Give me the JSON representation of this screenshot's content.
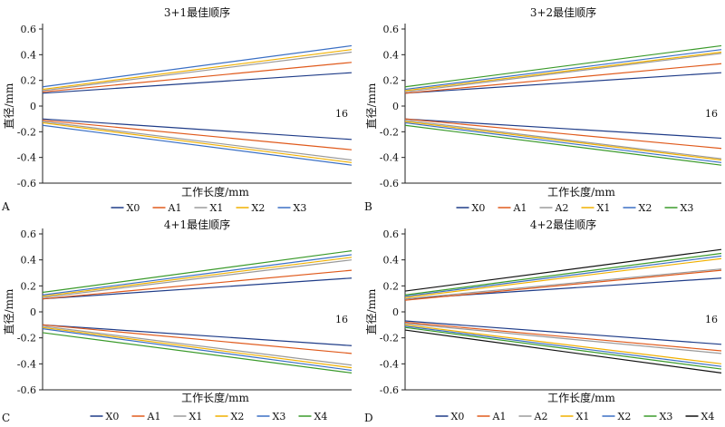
{
  "chart_data": [
    {
      "type": "line",
      "panel_label": "A",
      "title": "3+1最佳顺序",
      "xlabel": "工作长度/mm",
      "ylabel": "直径/mm",
      "annotation": "16",
      "ylim": [
        -0.6,
        0.6
      ],
      "yticks": [
        "0.6",
        "0.4",
        "0.2",
        "0",
        "-0.2",
        "-0.4",
        "-0.6"
      ],
      "x": [
        0,
        16
      ],
      "legend_position": "bottom",
      "series": [
        {
          "name": "X0",
          "color": "#1f3c88",
          "upper": [
            0.1,
            0.26
          ],
          "lower": [
            -0.1,
            -0.26
          ]
        },
        {
          "name": "A1",
          "color": "#e05a1c",
          "upper": [
            0.11,
            0.34
          ],
          "lower": [
            -0.11,
            -0.34
          ]
        },
        {
          "name": "X1",
          "color": "#9a9a9a",
          "upper": [
            0.12,
            0.42
          ],
          "lower": [
            -0.12,
            -0.42
          ]
        },
        {
          "name": "X2",
          "color": "#f0b000",
          "upper": [
            0.13,
            0.44
          ],
          "lower": [
            -0.13,
            -0.44
          ]
        },
        {
          "name": "X3",
          "color": "#3a6fc4",
          "upper": [
            0.15,
            0.47
          ],
          "lower": [
            -0.15,
            -0.46
          ]
        }
      ]
    },
    {
      "type": "line",
      "panel_label": "B",
      "title": "3+2最佳顺序",
      "xlabel": "工作长度/mm",
      "ylabel": "直径/mm",
      "annotation": "16",
      "ylim": [
        -0.6,
        0.6
      ],
      "yticks": [
        "0.6",
        "0.4",
        "0.2",
        "0",
        "-0.2",
        "-0.4",
        "-0.6"
      ],
      "x": [
        0,
        16
      ],
      "legend_position": "bottom",
      "series": [
        {
          "name": "X0",
          "color": "#1f3c88",
          "upper": [
            0.1,
            0.26
          ],
          "lower": [
            -0.1,
            -0.25
          ]
        },
        {
          "name": "A1",
          "color": "#e05a1c",
          "upper": [
            0.1,
            0.33
          ],
          "lower": [
            -0.1,
            -0.33
          ]
        },
        {
          "name": "A2",
          "color": "#9a9a9a",
          "upper": [
            0.11,
            0.41
          ],
          "lower": [
            -0.11,
            -0.41
          ]
        },
        {
          "name": "X1",
          "color": "#f0b000",
          "upper": [
            0.12,
            0.42
          ],
          "lower": [
            -0.12,
            -0.42
          ]
        },
        {
          "name": "X2",
          "color": "#3a6fc4",
          "upper": [
            0.13,
            0.44
          ],
          "lower": [
            -0.13,
            -0.44
          ]
        },
        {
          "name": "X3",
          "color": "#3a9a2a",
          "upper": [
            0.15,
            0.47
          ],
          "lower": [
            -0.15,
            -0.46
          ]
        }
      ]
    },
    {
      "type": "line",
      "panel_label": "C",
      "title": "4+1最佳顺序",
      "xlabel": "工作长度/mm",
      "ylabel": "直径/mm",
      "annotation": "16",
      "ylim": [
        -0.6,
        0.6
      ],
      "yticks": [
        "0.6",
        "0.4",
        "0.2",
        "0",
        "-0.2",
        "-0.4",
        "-0.6"
      ],
      "x": [
        0,
        16
      ],
      "legend_position": "bottom",
      "series": [
        {
          "name": "X0",
          "color": "#1f3c88",
          "upper": [
            0.1,
            0.26
          ],
          "lower": [
            -0.1,
            -0.26
          ]
        },
        {
          "name": "A1",
          "color": "#e05a1c",
          "upper": [
            0.1,
            0.32
          ],
          "lower": [
            -0.1,
            -0.32
          ]
        },
        {
          "name": "X1",
          "color": "#9a9a9a",
          "upper": [
            0.11,
            0.4
          ],
          "lower": [
            -0.11,
            -0.41
          ]
        },
        {
          "name": "X2",
          "color": "#f0b000",
          "upper": [
            0.12,
            0.42
          ],
          "lower": [
            -0.12,
            -0.43
          ]
        },
        {
          "name": "X3",
          "color": "#3a6fc4",
          "upper": [
            0.13,
            0.44
          ],
          "lower": [
            -0.13,
            -0.45
          ]
        },
        {
          "name": "X4",
          "color": "#3a9a2a",
          "upper": [
            0.15,
            0.47
          ],
          "lower": [
            -0.16,
            -0.47
          ]
        }
      ]
    },
    {
      "type": "line",
      "panel_label": "D",
      "title": "4+2最佳顺序",
      "xlabel": "工作长度/mm",
      "ylabel": "直径/mm",
      "annotation": "16",
      "ylim": [
        -0.6,
        0.6
      ],
      "yticks": [
        "0.6",
        "0.4",
        "0.2",
        "0",
        "-0.2",
        "-0.4",
        "-0.6"
      ],
      "x": [
        0,
        16
      ],
      "legend_position": "bottom",
      "series": [
        {
          "name": "X0",
          "color": "#1f3c88",
          "upper": [
            0.1,
            0.26
          ],
          "lower": [
            -0.07,
            -0.25
          ]
        },
        {
          "name": "A1",
          "color": "#e05a1c",
          "upper": [
            0.09,
            0.32
          ],
          "lower": [
            -0.08,
            -0.3
          ]
        },
        {
          "name": "A2",
          "color": "#9a9a9a",
          "upper": [
            0.1,
            0.33
          ],
          "lower": [
            -0.09,
            -0.32
          ]
        },
        {
          "name": "X1",
          "color": "#f0b000",
          "upper": [
            0.11,
            0.41
          ],
          "lower": [
            -0.1,
            -0.4
          ]
        },
        {
          "name": "X2",
          "color": "#3a6fc4",
          "upper": [
            0.12,
            0.43
          ],
          "lower": [
            -0.11,
            -0.42
          ]
        },
        {
          "name": "X3",
          "color": "#3a9a2a",
          "upper": [
            0.13,
            0.45
          ],
          "lower": [
            -0.12,
            -0.44
          ]
        },
        {
          "name": "X4",
          "color": "#111111",
          "upper": [
            0.16,
            0.48
          ],
          "lower": [
            -0.14,
            -0.47
          ]
        }
      ]
    }
  ]
}
